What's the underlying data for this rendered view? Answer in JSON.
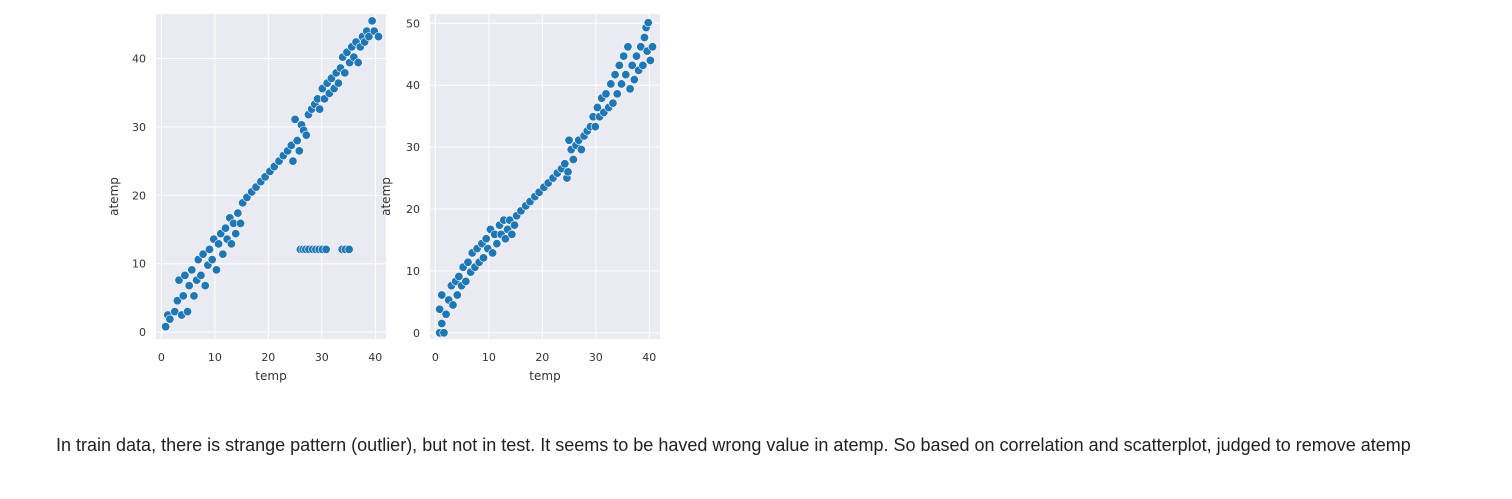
{
  "chart_data": [
    {
      "type": "scatter",
      "xlabel": "temp",
      "ylabel": "atemp",
      "xlim": [
        -1,
        42
      ],
      "ylim": [
        -1,
        46.5
      ],
      "xticks": [
        0,
        10,
        20,
        30,
        40
      ],
      "yticks": [
        0,
        10,
        20,
        30,
        40
      ],
      "grid": true,
      "color": "#1f77b4",
      "points": [
        [
          0.8,
          0.8
        ],
        [
          1.2,
          2.5
        ],
        [
          1.6,
          1.9
        ],
        [
          2.5,
          3.0
        ],
        [
          3.0,
          4.6
        ],
        [
          3.3,
          7.6
        ],
        [
          3.8,
          2.5
        ],
        [
          4.1,
          5.3
        ],
        [
          4.4,
          8.3
        ],
        [
          4.9,
          3.0
        ],
        [
          5.2,
          6.8
        ],
        [
          5.7,
          9.1
        ],
        [
          6.1,
          5.3
        ],
        [
          6.6,
          7.6
        ],
        [
          6.9,
          10.6
        ],
        [
          7.4,
          8.3
        ],
        [
          7.8,
          11.4
        ],
        [
          8.2,
          6.8
        ],
        [
          8.7,
          9.8
        ],
        [
          9.0,
          12.1
        ],
        [
          9.5,
          10.6
        ],
        [
          9.8,
          13.6
        ],
        [
          10.3,
          9.1
        ],
        [
          10.7,
          12.9
        ],
        [
          11.1,
          14.4
        ],
        [
          11.5,
          11.4
        ],
        [
          12.0,
          15.2
        ],
        [
          12.3,
          13.6
        ],
        [
          12.8,
          16.7
        ],
        [
          13.1,
          12.9
        ],
        [
          13.5,
          15.9
        ],
        [
          13.9,
          14.4
        ],
        [
          14.3,
          17.4
        ],
        [
          14.8,
          15.9
        ],
        [
          15.2,
          18.9
        ],
        [
          16.0,
          19.7
        ],
        [
          16.9,
          20.5
        ],
        [
          17.7,
          21.2
        ],
        [
          18.6,
          22.0
        ],
        [
          19.4,
          22.7
        ],
        [
          20.3,
          23.5
        ],
        [
          21.1,
          24.2
        ],
        [
          22.0,
          25.0
        ],
        [
          22.8,
          25.8
        ],
        [
          23.6,
          26.5
        ],
        [
          24.3,
          27.3
        ],
        [
          24.6,
          25.0
        ],
        [
          25.0,
          31.1
        ],
        [
          25.4,
          28.0
        ],
        [
          25.8,
          26.5
        ],
        [
          26.2,
          30.3
        ],
        [
          26.6,
          29.5
        ],
        [
          27.1,
          28.8
        ],
        [
          27.5,
          31.8
        ],
        [
          28.1,
          32.6
        ],
        [
          28.7,
          33.3
        ],
        [
          29.2,
          34.1
        ],
        [
          29.6,
          32.6
        ],
        [
          30.1,
          35.6
        ],
        [
          30.5,
          34.1
        ],
        [
          31.0,
          36.4
        ],
        [
          31.4,
          34.9
        ],
        [
          31.8,
          37.1
        ],
        [
          32.3,
          35.6
        ],
        [
          32.7,
          37.9
        ],
        [
          33.1,
          36.4
        ],
        [
          33.5,
          38.6
        ],
        [
          33.9,
          40.2
        ],
        [
          34.3,
          37.9
        ],
        [
          34.7,
          40.9
        ],
        [
          35.2,
          39.4
        ],
        [
          35.6,
          41.7
        ],
        [
          36.0,
          40.2
        ],
        [
          36.4,
          42.4
        ],
        [
          36.8,
          39.4
        ],
        [
          37.2,
          41.7
        ],
        [
          37.6,
          43.2
        ],
        [
          38.0,
          42.4
        ],
        [
          38.4,
          44.0
        ],
        [
          38.8,
          43.2
        ],
        [
          39.4,
          45.5
        ],
        [
          39.8,
          44.0
        ],
        [
          40.6,
          43.2
        ],
        [
          26.0,
          12.1
        ],
        [
          26.5,
          12.1
        ],
        [
          27.0,
          12.1
        ],
        [
          27.6,
          12.1
        ],
        [
          28.3,
          12.1
        ],
        [
          28.9,
          12.1
        ],
        [
          29.5,
          12.1
        ],
        [
          30.1,
          12.1
        ],
        [
          30.8,
          12.1
        ],
        [
          33.8,
          12.1
        ],
        [
          34.4,
          12.1
        ],
        [
          35.1,
          12.1
        ]
      ]
    },
    {
      "type": "scatter",
      "xlabel": "temp",
      "ylabel": "atemp",
      "xlim": [
        -1,
        42
      ],
      "ylim": [
        -1,
        51.5
      ],
      "xticks": [
        0,
        10,
        20,
        30,
        40
      ],
      "yticks": [
        0,
        10,
        20,
        30,
        40,
        50
      ],
      "grid": true,
      "color": "#1f77b4",
      "points": [
        [
          0.8,
          0.0
        ],
        [
          0.8,
          3.8
        ],
        [
          1.2,
          6.1
        ],
        [
          1.2,
          1.5
        ],
        [
          1.6,
          0.0
        ],
        [
          2.0,
          3.0
        ],
        [
          2.5,
          5.3
        ],
        [
          3.0,
          7.6
        ],
        [
          3.3,
          4.5
        ],
        [
          3.8,
          8.3
        ],
        [
          4.1,
          6.1
        ],
        [
          4.4,
          9.1
        ],
        [
          4.9,
          7.6
        ],
        [
          5.2,
          10.6
        ],
        [
          5.7,
          8.3
        ],
        [
          6.1,
          11.4
        ],
        [
          6.6,
          9.8
        ],
        [
          6.9,
          12.9
        ],
        [
          7.4,
          10.6
        ],
        [
          7.8,
          13.6
        ],
        [
          8.2,
          11.4
        ],
        [
          8.7,
          14.4
        ],
        [
          9.0,
          12.1
        ],
        [
          9.5,
          15.2
        ],
        [
          9.8,
          13.6
        ],
        [
          10.3,
          16.7
        ],
        [
          10.7,
          12.9
        ],
        [
          11.1,
          15.9
        ],
        [
          11.5,
          14.4
        ],
        [
          12.0,
          17.4
        ],
        [
          12.3,
          15.9
        ],
        [
          12.8,
          18.2
        ],
        [
          13.1,
          15.2
        ],
        [
          13.5,
          16.7
        ],
        [
          13.9,
          18.2
        ],
        [
          14.3,
          15.9
        ],
        [
          14.8,
          17.4
        ],
        [
          15.2,
          18.9
        ],
        [
          16.0,
          19.7
        ],
        [
          16.9,
          20.5
        ],
        [
          17.7,
          21.2
        ],
        [
          18.6,
          22.0
        ],
        [
          19.4,
          22.7
        ],
        [
          20.3,
          23.5
        ],
        [
          21.1,
          24.2
        ],
        [
          22.0,
          25.0
        ],
        [
          22.8,
          25.8
        ],
        [
          23.6,
          26.5
        ],
        [
          24.2,
          27.3
        ],
        [
          24.6,
          25.0
        ],
        [
          24.8,
          26.0
        ],
        [
          25.0,
          31.1
        ],
        [
          25.4,
          29.6
        ],
        [
          25.8,
          28.0
        ],
        [
          26.3,
          30.3
        ],
        [
          26.8,
          31.1
        ],
        [
          27.3,
          29.6
        ],
        [
          27.8,
          31.8
        ],
        [
          28.4,
          32.6
        ],
        [
          29.0,
          33.3
        ],
        [
          29.5,
          34.9
        ],
        [
          29.9,
          33.3
        ],
        [
          30.3,
          36.4
        ],
        [
          30.7,
          34.9
        ],
        [
          31.1,
          37.9
        ],
        [
          31.5,
          35.6
        ],
        [
          31.9,
          38.6
        ],
        [
          32.4,
          36.4
        ],
        [
          32.8,
          40.2
        ],
        [
          33.2,
          37.1
        ],
        [
          33.6,
          41.7
        ],
        [
          34.0,
          38.6
        ],
        [
          34.4,
          43.2
        ],
        [
          34.8,
          40.2
        ],
        [
          35.2,
          44.7
        ],
        [
          35.6,
          41.7
        ],
        [
          36.0,
          46.2
        ],
        [
          36.4,
          39.4
        ],
        [
          36.8,
          43.2
        ],
        [
          37.2,
          40.9
        ],
        [
          37.6,
          44.7
        ],
        [
          38.0,
          42.4
        ],
        [
          38.4,
          46.2
        ],
        [
          38.8,
          43.2
        ],
        [
          39.1,
          47.7
        ],
        [
          39.4,
          49.3
        ],
        [
          39.6,
          45.5
        ],
        [
          39.8,
          50.1
        ],
        [
          40.2,
          44.0
        ],
        [
          40.6,
          46.2
        ]
      ]
    }
  ],
  "caption": "In train data, there is strange pattern (outlier), but not in test. It seems to be haved wrong value in atemp. So based on correlation and scatterplot, judged to remove atemp"
}
